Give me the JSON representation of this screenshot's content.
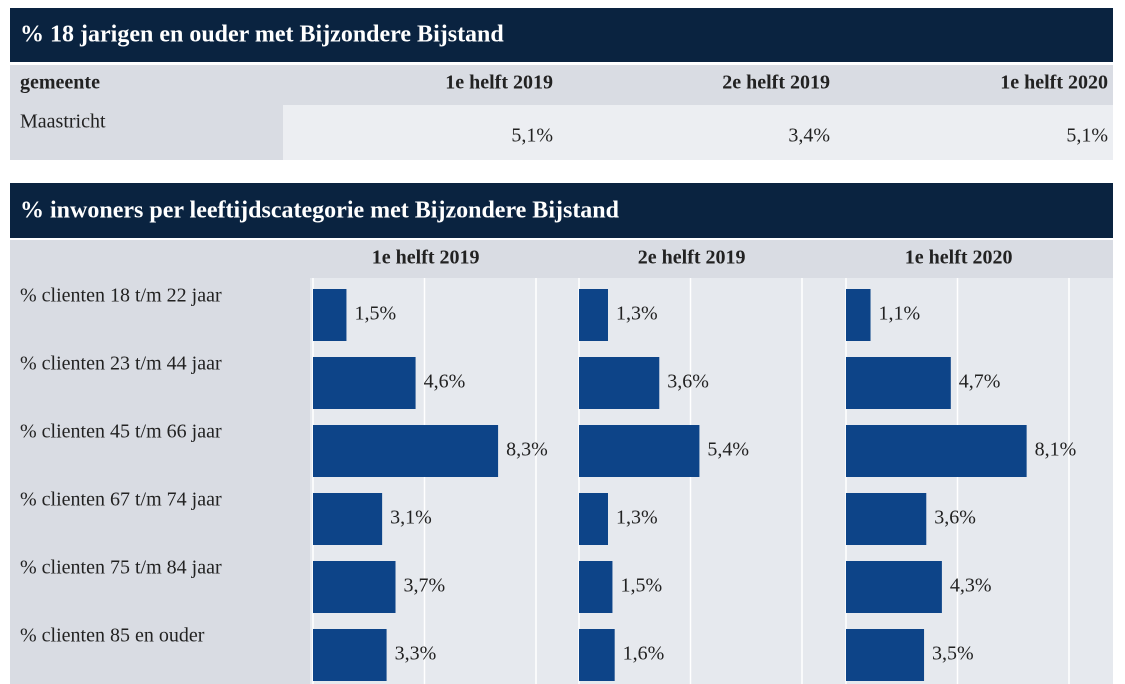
{
  "table": {
    "title": "% 18 jarigen en ouder met Bijzondere Bijstand",
    "header": [
      "gemeente",
      "1e helft 2019",
      "2e helft 2019",
      "1e helft 2020"
    ],
    "rows": [
      [
        "Maastricht",
        "5,1%",
        "3,4%",
        "5,1%"
      ]
    ]
  },
  "panel": {
    "title": "% inwoners per leeftijdscategorie met Bijzondere Bijstand"
  },
  "chart_data": [
    {
      "type": "hbar",
      "title": "1e helft 2019",
      "categories": [
        "% clienten 18 t/m 22 jaar",
        "% clienten 23 t/m 44 jaar",
        "% clienten 45 t/m 66 jaar",
        "% clienten 67 t/m 74 jaar",
        "% clienten 75 t/m 84 jaar",
        "% clienten 85 en ouder"
      ],
      "values": [
        1.5,
        4.6,
        8.3,
        3.1,
        3.7,
        3.3
      ],
      "value_labels": [
        "1,5%",
        "4,6%",
        "8,3%",
        "3,1%",
        "3,7%",
        "3,3%"
      ],
      "color": "#0d4488",
      "xlim": [
        0,
        11
      ],
      "xticks": [
        0,
        5,
        10
      ],
      "grid": true
    },
    {
      "type": "hbar",
      "title": "2e helft 2019",
      "values": [
        1.3,
        3.6,
        5.4,
        1.3,
        1.5,
        1.6
      ],
      "value_labels": [
        "1,3%",
        "3,6%",
        "5,4%",
        "1,3%",
        "1,5%",
        "1,6%"
      ],
      "color": "#0d4488",
      "xlim": [
        0,
        11
      ],
      "xticks": [
        0,
        5,
        10
      ],
      "grid": true
    },
    {
      "type": "hbar",
      "title": "1e helft 2020",
      "values": [
        1.1,
        4.7,
        8.1,
        3.6,
        4.3,
        3.5
      ],
      "value_labels": [
        "1,1%",
        "4,7%",
        "8,1%",
        "3,6%",
        "4,3%",
        "3,5%"
      ],
      "color": "#0d4488",
      "xlim": [
        0,
        11
      ],
      "xticks": [
        0,
        5,
        10
      ],
      "grid": true
    }
  ]
}
